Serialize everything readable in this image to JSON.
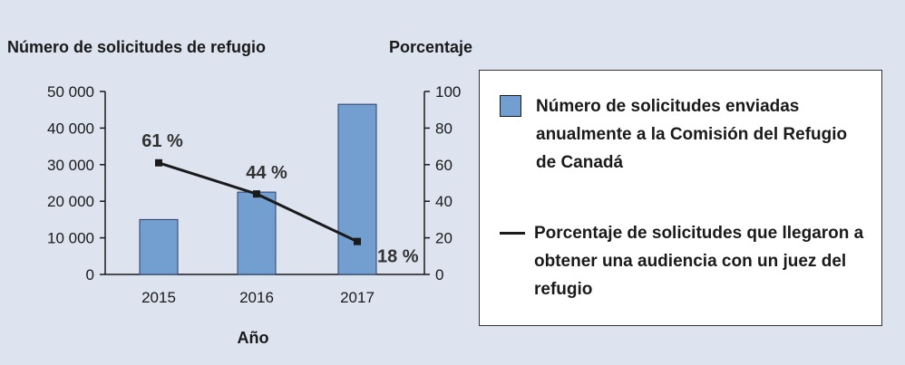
{
  "chart_data": {
    "type": "bar",
    "categories": [
      "2015",
      "2016",
      "2017"
    ],
    "xlabel": "Año",
    "y_left_label": "Número de solicitudes de refugio",
    "y_right_label": "Porcentaje",
    "y_left_range": [
      0,
      50000
    ],
    "y_left_ticks": [
      "0",
      "10 000",
      "20 000",
      "30 000",
      "40 000",
      "50 000"
    ],
    "y_right_range": [
      0,
      100
    ],
    "y_right_ticks": [
      "0",
      "20",
      "40",
      "60",
      "80",
      "100"
    ],
    "grid": false,
    "legend_position": "right",
    "series": [
      {
        "name": "Número de solicitudes enviadas\nanualmente a la Comisión del Refugio\nde Canadá",
        "type": "bar",
        "axis": "left",
        "values": [
          15000,
          22500,
          46500
        ],
        "color": "#729fcf"
      },
      {
        "name": "Porcentaje de solicitudes que llegaron a\nobtener una audiencia con un juez del\nrefugio",
        "type": "line",
        "axis": "right",
        "values": [
          61,
          44,
          18
        ],
        "labels": [
          "61 %",
          "44 %",
          "18 %"
        ],
        "color": "#1a1a1a"
      }
    ]
  }
}
